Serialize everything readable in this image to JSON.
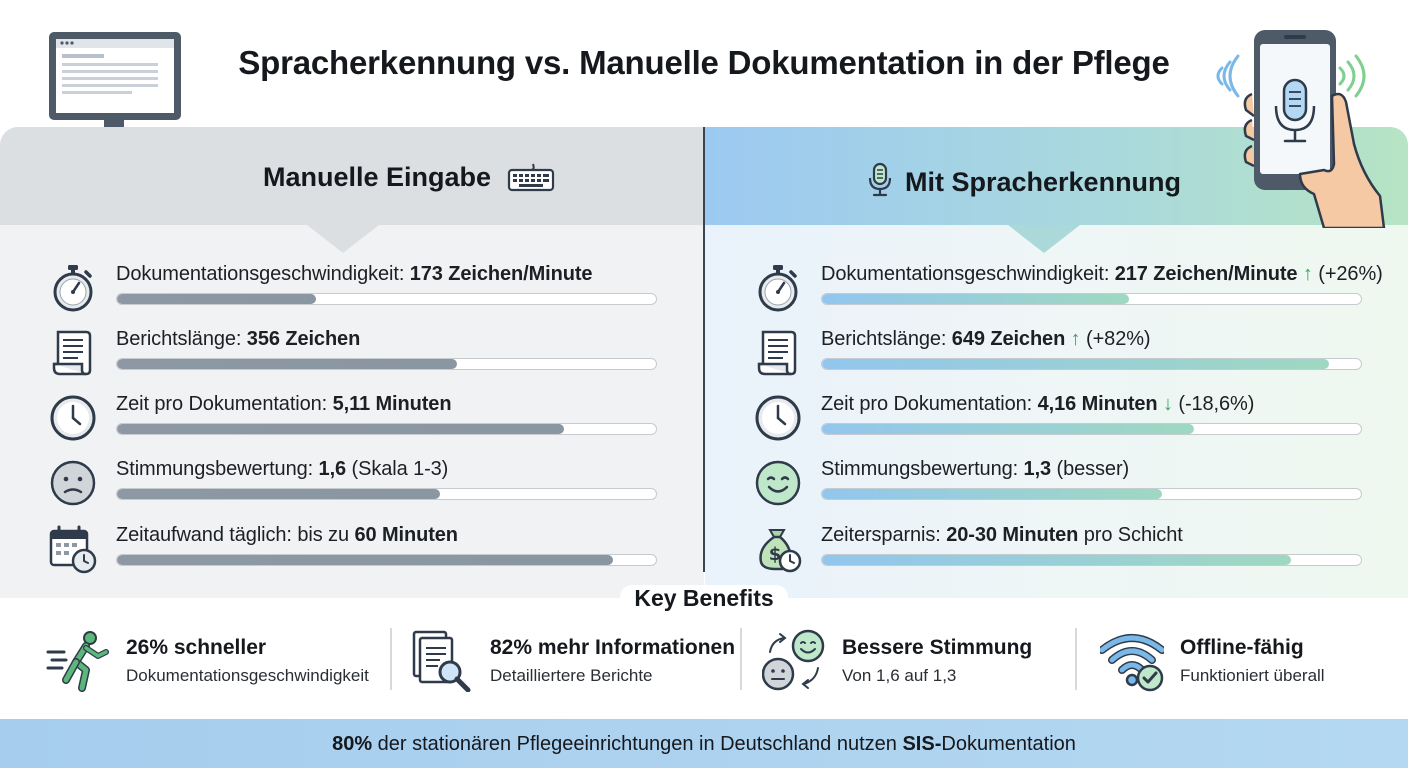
{
  "title": "Spracherkennung vs. Manuelle Dokumentation in der Pflege",
  "manual": {
    "title": "Manuelle Eingabe",
    "rows": [
      {
        "label": "Dokumentationsgeschwindigkeit: ",
        "value": "173 Zeichen/Minute",
        "bar": 0.37,
        "icon": "stopwatch-icon"
      },
      {
        "label": "Berichtslänge: ",
        "value": "356 Zeichen",
        "bar": 0.63,
        "icon": "document-icon"
      },
      {
        "label": "Zeit pro Dokumentation: ",
        "value": "5,11 Minuten",
        "bar": 0.83,
        "icon": "clock-icon"
      },
      {
        "label": "Stimmungsbewertung: ",
        "value": "1,6",
        "suffix": " (Skala 1-3)",
        "bar": 0.6,
        "icon": "sad-face-icon"
      },
      {
        "label": "Zeitaufwand täglich: bis zu ",
        "value": "60 Minuten",
        "bar": 0.92,
        "icon": "calendar-clock-icon"
      }
    ]
  },
  "speech": {
    "title": "Mit Spracherkennung",
    "rows": [
      {
        "label": "Dokumentationsgeschwindigkeit: ",
        "value": "217 Zeichen/Minute",
        "arrow": "↑",
        "change": " (+26%)",
        "bar": 0.57,
        "icon": "stopwatch-icon"
      },
      {
        "label": "Berichtslänge: ",
        "value": "649 Zeichen",
        "arrow": "↑",
        "change": " (+82%)",
        "bar": 0.94,
        "icon": "document-icon"
      },
      {
        "label": "Zeit pro Dokumentation: ",
        "value": "4,16 Minuten",
        "arrow": "↓",
        "change": " (-18,6%)",
        "bar": 0.69,
        "icon": "clock-icon"
      },
      {
        "label": "Stimmungsbewertung: ",
        "value": "1,3",
        "suffix": " (besser)",
        "bar": 0.63,
        "icon": "happy-face-icon"
      },
      {
        "label": "Zeitersparnis: ",
        "value": "20-30 Minuten",
        "suffix": " pro Schicht",
        "bar": 0.87,
        "icon": "money-bag-clock-icon"
      }
    ]
  },
  "key_benefits": {
    "title": "Key Benefits",
    "items": [
      {
        "title": "26% schneller",
        "subtitle": "Dokumentationsgeschwindigkeit",
        "icon": "running-person-icon"
      },
      {
        "title": "82% mehr Informationen",
        "subtitle": "Detailliertere Berichte",
        "icon": "document-search-icon"
      },
      {
        "title": "Bessere Stimmung",
        "subtitle": "Von 1,6 auf 1,3",
        "icon": "mood-change-icon"
      },
      {
        "title": "Offline-fähig",
        "subtitle": "Funktioniert überall",
        "icon": "wifi-check-icon"
      }
    ]
  },
  "footer": {
    "pct": "80%",
    "text": " der stationären Pflegeeinrichtungen in Deutschland nutzen ",
    "sis": "SIS-",
    "tail": "Dokumentation"
  },
  "colors": {
    "manual_bar": "#8d98a4",
    "speech_bar_start": "#92c6ee",
    "speech_bar_end": "#9fd8c1",
    "arrow_green": "#3aa35a",
    "footer_bg": "#a6cdee"
  }
}
